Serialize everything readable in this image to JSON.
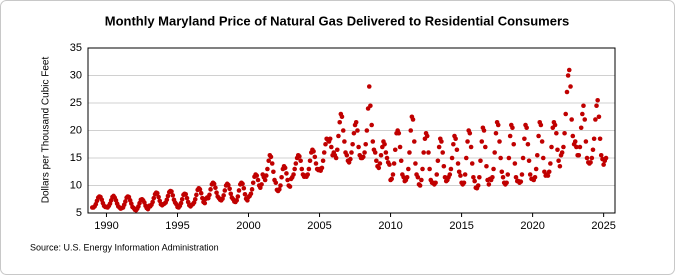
{
  "chart_data": {
    "type": "scatter",
    "title": "Monthly Maryland Price of Natural Gas Delivered to Residential Consumers",
    "y_label": "Dollars per Thousand Cubic Feet",
    "source": "Source: U.S. Energy Information Administration",
    "color": "#c00000",
    "xlim": [
      1988.7,
      2025.8
    ],
    "xticks": [
      1990,
      1995,
      2000,
      2005,
      2010,
      2015,
      2020,
      2025
    ],
    "ylim": [
      5,
      35
    ],
    "yticks": [
      5,
      10,
      15,
      20,
      25,
      30,
      35
    ],
    "grid": true,
    "x": [
      1989.0,
      1989.08,
      1989.17,
      1989.25,
      1989.33,
      1989.42,
      1989.5,
      1989.58,
      1989.67,
      1989.75,
      1989.83,
      1989.92,
      1990.0,
      1990.08,
      1990.17,
      1990.25,
      1990.33,
      1990.42,
      1990.5,
      1990.58,
      1990.67,
      1990.75,
      1990.83,
      1990.92,
      1991.0,
      1991.08,
      1991.17,
      1991.25,
      1991.33,
      1991.42,
      1991.5,
      1991.58,
      1991.67,
      1991.75,
      1991.83,
      1991.92,
      1992.0,
      1992.08,
      1992.17,
      1992.25,
      1992.33,
      1992.42,
      1992.5,
      1992.58,
      1992.67,
      1992.75,
      1992.83,
      1992.92,
      1993.0,
      1993.08,
      1993.17,
      1993.25,
      1993.33,
      1993.42,
      1993.5,
      1993.58,
      1993.67,
      1993.75,
      1993.83,
      1993.92,
      1994.0,
      1994.08,
      1994.17,
      1994.25,
      1994.33,
      1994.42,
      1994.5,
      1994.58,
      1994.67,
      1994.75,
      1994.83,
      1994.92,
      1995.0,
      1995.08,
      1995.17,
      1995.25,
      1995.33,
      1995.42,
      1995.5,
      1995.58,
      1995.67,
      1995.75,
      1995.83,
      1995.92,
      1996.0,
      1996.08,
      1996.17,
      1996.25,
      1996.33,
      1996.42,
      1996.5,
      1996.58,
      1996.67,
      1996.75,
      1996.83,
      1996.92,
      1997.0,
      1997.08,
      1997.17,
      1997.25,
      1997.33,
      1997.42,
      1997.5,
      1997.58,
      1997.67,
      1997.75,
      1997.83,
      1997.92,
      1998.0,
      1998.08,
      1998.17,
      1998.25,
      1998.33,
      1998.42,
      1998.5,
      1998.58,
      1998.67,
      1998.75,
      1998.83,
      1998.92,
      1999.0,
      1999.08,
      1999.17,
      1999.25,
      1999.33,
      1999.42,
      1999.5,
      1999.58,
      1999.67,
      1999.75,
      1999.83,
      1999.92,
      2000.0,
      2000.08,
      2000.17,
      2000.25,
      2000.33,
      2000.42,
      2000.5,
      2000.58,
      2000.67,
      2000.75,
      2000.83,
      2000.92,
      2001.0,
      2001.08,
      2001.17,
      2001.25,
      2001.33,
      2001.42,
      2001.5,
      2001.58,
      2001.67,
      2001.75,
      2001.83,
      2001.92,
      2002.0,
      2002.08,
      2002.17,
      2002.25,
      2002.33,
      2002.42,
      2002.5,
      2002.58,
      2002.67,
      2002.75,
      2002.83,
      2002.92,
      2003.0,
      2003.08,
      2003.17,
      2003.25,
      2003.33,
      2003.42,
      2003.5,
      2003.58,
      2003.67,
      2003.75,
      2003.83,
      2003.92,
      2004.0,
      2004.08,
      2004.17,
      2004.25,
      2004.33,
      2004.42,
      2004.5,
      2004.58,
      2004.67,
      2004.75,
      2004.83,
      2004.92,
      2005.0,
      2005.08,
      2005.17,
      2005.25,
      2005.33,
      2005.42,
      2005.5,
      2005.58,
      2005.67,
      2005.75,
      2005.83,
      2005.92,
      2006.0,
      2006.08,
      2006.17,
      2006.25,
      2006.33,
      2006.42,
      2006.5,
      2006.58,
      2006.67,
      2006.75,
      2006.83,
      2006.92,
      2007.0,
      2007.08,
      2007.17,
      2007.25,
      2007.33,
      2007.42,
      2007.5,
      2007.58,
      2007.67,
      2007.75,
      2007.83,
      2007.92,
      2008.0,
      2008.08,
      2008.17,
      2008.25,
      2008.33,
      2008.42,
      2008.5,
      2008.58,
      2008.67,
      2008.75,
      2008.83,
      2008.92,
      2009.0,
      2009.08,
      2009.17,
      2009.25,
      2009.33,
      2009.42,
      2009.5,
      2009.58,
      2009.67,
      2009.75,
      2009.83,
      2009.92,
      2010.0,
      2010.08,
      2010.17,
      2010.25,
      2010.33,
      2010.42,
      2010.5,
      2010.58,
      2010.67,
      2010.75,
      2010.83,
      2010.92,
      2011.0,
      2011.08,
      2011.17,
      2011.25,
      2011.33,
      2011.42,
      2011.5,
      2011.58,
      2011.67,
      2011.75,
      2011.83,
      2011.92,
      2012.0,
      2012.08,
      2012.17,
      2012.25,
      2012.33,
      2012.42,
      2012.5,
      2012.58,
      2012.67,
      2012.75,
      2012.83,
      2012.92,
      2013.0,
      2013.08,
      2013.17,
      2013.25,
      2013.33,
      2013.42,
      2013.5,
      2013.58,
      2013.67,
      2013.75,
      2013.83,
      2013.92,
      2014.0,
      2014.08,
      2014.17,
      2014.25,
      2014.33,
      2014.42,
      2014.5,
      2014.58,
      2014.67,
      2014.75,
      2014.83,
      2014.92,
      2015.0,
      2015.08,
      2015.17,
      2015.25,
      2015.33,
      2015.42,
      2015.5,
      2015.58,
      2015.67,
      2015.75,
      2015.83,
      2015.92,
      2016.0,
      2016.08,
      2016.17,
      2016.25,
      2016.33,
      2016.42,
      2016.5,
      2016.58,
      2016.67,
      2016.75,
      2016.83,
      2016.92,
      2017.0,
      2017.08,
      2017.17,
      2017.25,
      2017.33,
      2017.42,
      2017.5,
      2017.58,
      2017.67,
      2017.75,
      2017.83,
      2017.92,
      2018.0,
      2018.08,
      2018.17,
      2018.25,
      2018.33,
      2018.42,
      2018.5,
      2018.58,
      2018.67,
      2018.75,
      2018.83,
      2018.92,
      2019.0,
      2019.08,
      2019.17,
      2019.25,
      2019.33,
      2019.42,
      2019.5,
      2019.58,
      2019.67,
      2019.75,
      2019.83,
      2019.92,
      2020.0,
      2020.08,
      2020.17,
      2020.25,
      2020.33,
      2020.42,
      2020.5,
      2020.58,
      2020.67,
      2020.75,
      2020.83,
      2020.92,
      2021.0,
      2021.08,
      2021.17,
      2021.25,
      2021.33,
      2021.42,
      2021.5,
      2021.58,
      2021.67,
      2021.75,
      2021.83,
      2021.92,
      2022.0,
      2022.08,
      2022.17,
      2022.25,
      2022.33,
      2022.42,
      2022.5,
      2022.58,
      2022.67,
      2022.75,
      2022.83,
      2022.92,
      2023.0,
      2023.08,
      2023.17,
      2023.25,
      2023.33,
      2023.42,
      2023.5,
      2023.58,
      2023.67,
      2023.75,
      2023.83,
      2023.92,
      2024.0,
      2024.08,
      2024.17,
      2024.25,
      2024.33,
      2024.42,
      2024.5,
      2024.58,
      2024.67,
      2024.75,
      2024.83,
      2024.92,
      2025.0,
      2025.08,
      2025.17
    ],
    "values": [
      6,
      6,
      6.2,
      6.6,
      7.2,
      7.8,
      8,
      7.9,
      7.4,
      6.8,
      6.3,
      6.1,
      6.1,
      6,
      6.3,
      6.7,
      7.3,
      7.9,
      8.1,
      7.8,
      7.3,
      6.7,
      6.2,
      6,
      5.8,
      5.9,
      6,
      6.5,
      7.1,
      7.8,
      8,
      7.9,
      7.3,
      6.7,
      6.1,
      5.9,
      5.6,
      5.5,
      5.8,
      6.2,
      6.8,
      7.4,
      7.5,
      7.3,
      6.9,
      6.3,
      5.9,
      5.7,
      6.3,
      6.2,
      6.5,
      7,
      7.7,
      8.4,
      8.7,
      8.6,
      7.9,
      7.2,
      6.6,
      6.4,
      6.6,
      6.7,
      6.9,
      7.4,
      8.1,
      8.8,
      9,
      8.9,
      8.2,
      7.4,
      6.9,
      6.6,
      6.1,
      6,
      6.3,
      6.8,
      7.5,
      8.3,
      8.5,
      8.4,
      7.7,
      7,
      6.4,
      6.2,
      6.5,
      6.6,
      6.9,
      7.5,
      8.3,
      9.2,
      9.5,
      9.3,
      8.6,
      7.7,
      7,
      6.8,
      7.6,
      7.8,
      7.7,
      8.3,
      9.3,
      10.2,
      10.5,
      10.3,
      9.6,
      8.7,
      8,
      7.7,
      7.4,
      7.3,
      7.6,
      8.2,
      9.1,
      10,
      10.3,
      10.1,
      9.4,
      8.5,
      7.8,
      7.5,
      7.1,
      7,
      7.3,
      8,
      9.1,
      10.2,
      10.5,
      10.3,
      9.5,
      8.4,
      7.6,
      7.3,
      7.9,
      8.1,
      8.5,
      9.3,
      10.5,
      11.6,
      12,
      11.8,
      11,
      10,
      9.6,
      10.2,
      12,
      11.5,
      11,
      11.8,
      13,
      14.5,
      15.5,
      15.2,
      14,
      12.5,
      11,
      10.5,
      9.2,
      9,
      9.3,
      10,
      11.5,
      13,
      13.5,
      13.2,
      12.2,
      11,
      10,
      9.8,
      11.2,
      11.5,
      12,
      13,
      14,
      15,
      15.5,
      15.3,
      14.5,
      13,
      12,
      11.6,
      11.8,
      11.6,
      12,
      13,
      14.5,
      16,
      16.5,
      16.2,
      15.2,
      14,
      13,
      12.8,
      13,
      12.7,
      13.2,
      14.5,
      16,
      17.5,
      18.5,
      18.3,
      18,
      18.5,
      17,
      15.5,
      16,
      15.5,
      15,
      16.5,
      19,
      21.5,
      23,
      22.5,
      20,
      18,
      16,
      15.5,
      14.5,
      14.2,
      14.8,
      16,
      17.5,
      19.5,
      21,
      21.5,
      20,
      17,
      15.5,
      15,
      15,
      15.2,
      16,
      17.5,
      20,
      24,
      28,
      24.5,
      21,
      18,
      16.5,
      16,
      14.5,
      13.5,
      13.2,
      14,
      15.5,
      17,
      18,
      17.5,
      16,
      15,
      14.2,
      13.8,
      11,
      11.2,
      12,
      14,
      16.5,
      19.5,
      20,
      19.5,
      17,
      14.5,
      12,
      11.5,
      10.8,
      11,
      11.5,
      13,
      16,
      20,
      22.5,
      22,
      18,
      14,
      12,
      11.5,
      10.2,
      10,
      11,
      13,
      16,
      18.5,
      19.5,
      19,
      16,
      13,
      11,
      10.5,
      10.5,
      10.2,
      10.5,
      12,
      14.5,
      17,
      18.5,
      18,
      16,
      13.5,
      11.5,
      10.8,
      11,
      11.5,
      12,
      13,
      15,
      17.5,
      19,
      18.5,
      16.5,
      14,
      12.5,
      11.8,
      10.5,
      10.2,
      10.5,
      12,
      15,
      18,
      20,
      19.5,
      17,
      14,
      11.5,
      10.8,
      9.6,
      9.5,
      10,
      11.5,
      14.5,
      18,
      20.5,
      20,
      17,
      13.5,
      11,
      10.2,
      11.2,
      11,
      11.5,
      13,
      16,
      19.5,
      21.5,
      21,
      18,
      15,
      12.5,
      11.5,
      10.5,
      10.2,
      10.5,
      12,
      15,
      19,
      21,
      20.5,
      17.5,
      14,
      11.5,
      10.8,
      10.8,
      10.5,
      10.7,
      12,
      15,
      18.5,
      21,
      20.5,
      17.5,
      14.5,
      12,
      11.2,
      11.2,
      11,
      11.5,
      13,
      15.5,
      19,
      21.5,
      21,
      18,
      15,
      12.5,
      11.8,
      12,
      11.8,
      12.5,
      14,
      17,
      20.5,
      21.5,
      21,
      19.5,
      16.5,
      14.5,
      13.5,
      15.5,
      16,
      17,
      19.5,
      23,
      27,
      30,
      31,
      28,
      22,
      19,
      17.5,
      18,
      17,
      15.5,
      15.5,
      17,
      20.5,
      23,
      24.5,
      22,
      18,
      15,
      14.2,
      14,
      14.2,
      15,
      16.5,
      18.5,
      22,
      24.5,
      25.5,
      22.5,
      18.5,
      15.5,
      14.8,
      13.8,
      14.5,
      15
    ]
  }
}
